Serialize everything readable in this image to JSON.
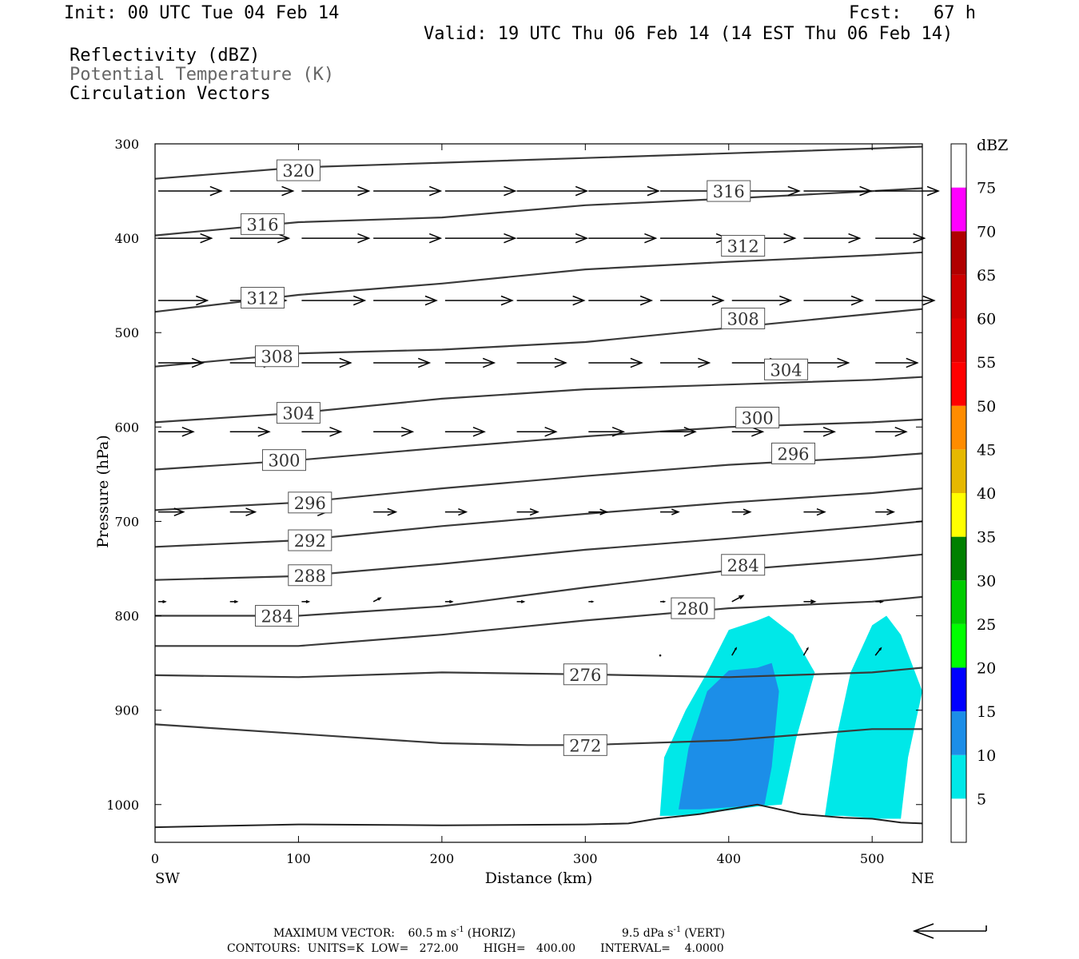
{
  "header": {
    "init": "Init: 00 UTC Tue 04 Feb 14",
    "fcst": "Fcst:   67 h",
    "valid": "Valid: 19 UTC Thu 06 Feb 14 (14 EST Thu 06 Feb 14)"
  },
  "fields": {
    "reflectivity": "Reflectivity (dBZ)",
    "theta": "Potential Temperature (K)",
    "vectors": "Circulation Vectors"
  },
  "footer": {
    "max_vector_label": "MAXIMUM VECTOR:",
    "max_horiz": "60.5 m s",
    "horiz_tag": "(HORIZ)",
    "max_vert": "9.5 dPa s",
    "vert_tag": "(VERT)",
    "exponent": "-1",
    "contours": "CONTOURS:  UNITS=K  LOW=   272.00       HIGH=   400.00       INTERVAL=    4.0000"
  },
  "colors": {
    "contour": "#3a3a3a",
    "scale": [
      {
        "value": 5,
        "color": "#00e8e8"
      },
      {
        "value": 10,
        "color": "#1c8ee8"
      },
      {
        "value": 15,
        "color": "#0000ff"
      },
      {
        "value": 20,
        "color": "#00ff00"
      },
      {
        "value": 25,
        "color": "#00cc00"
      },
      {
        "value": 30,
        "color": "#008000"
      },
      {
        "value": 35,
        "color": "#ffff00"
      },
      {
        "value": 40,
        "color": "#e6b800"
      },
      {
        "value": 45,
        "color": "#ff8c00"
      },
      {
        "value": 50,
        "color": "#ff0000"
      },
      {
        "value": 55,
        "color": "#e00000"
      },
      {
        "value": 60,
        "color": "#cc0000"
      },
      {
        "value": 65,
        "color": "#b00000"
      },
      {
        "value": 70,
        "color": "#ff00ff"
      },
      {
        "value": 75,
        "color": "#9955cc"
      }
    ]
  },
  "chart_data": {
    "type": "cross-section",
    "xlabel": "Distance (km)",
    "ylabel": "Pressure (hPa)",
    "xlim": [
      0,
      535
    ],
    "ylim": [
      1040,
      300
    ],
    "x_ticks": [
      0,
      100,
      200,
      300,
      400,
      500
    ],
    "y_ticks": [
      300,
      400,
      500,
      600,
      700,
      800,
      900,
      1000
    ],
    "x_ends": {
      "left": "SW",
      "right": "NE"
    },
    "colorbar_title": "dBZ",
    "colorbar_ticks": [
      5,
      10,
      15,
      20,
      25,
      30,
      35,
      40,
      45,
      50,
      55,
      60,
      65,
      70,
      75
    ],
    "theta_contours": [
      {
        "value": 272,
        "x": [
          0,
          100,
          200,
          260,
          300,
          400,
          500,
          535
        ],
        "p": [
          915,
          925,
          935,
          937,
          937,
          932,
          920,
          920
        ],
        "label_at": [
          300,
          937
        ]
      },
      {
        "value": 276,
        "x": [
          0,
          100,
          200,
          300,
          400,
          500,
          535
        ],
        "p": [
          863,
          865,
          860,
          862,
          865,
          860,
          855
        ],
        "label_at": [
          300,
          862
        ]
      },
      {
        "value": 280,
        "x": [
          0,
          100,
          200,
          300,
          400,
          500,
          535
        ],
        "p": [
          832,
          832,
          820,
          805,
          792,
          785,
          780
        ],
        "label_at": [
          375,
          792
        ]
      },
      {
        "value": 284,
        "x": [
          0,
          100,
          200,
          300,
          400,
          500,
          535
        ],
        "p": [
          800,
          800,
          790,
          770,
          752,
          740,
          735
        ],
        "label_at": [
          85,
          800
        ]
      },
      {
        "value": 288,
        "x": [
          0,
          100,
          200,
          300,
          400,
          500,
          535
        ],
        "p": [
          762,
          758,
          745,
          730,
          718,
          705,
          700
        ],
        "label_at": [
          108,
          757
        ]
      },
      {
        "value": 292,
        "x": [
          0,
          100,
          200,
          300,
          400,
          500,
          535
        ],
        "p": [
          727,
          720,
          705,
          692,
          680,
          670,
          665
        ],
        "label_at": [
          108,
          720
        ]
      },
      {
        "value": 296,
        "x": [
          0,
          100,
          200,
          300,
          400,
          500,
          535
        ],
        "p": [
          688,
          680,
          665,
          652,
          640,
          632,
          628
        ],
        "label_at": [
          108,
          680
        ]
      },
      {
        "value": 300,
        "x": [
          0,
          100,
          200,
          300,
          400,
          500,
          535
        ],
        "p": [
          645,
          635,
          622,
          610,
          600,
          595,
          592
        ],
        "label_at": [
          90,
          635
        ]
      },
      {
        "value": 304,
        "x": [
          0,
          100,
          200,
          300,
          400,
          500,
          535
        ],
        "p": [
          595,
          585,
          570,
          560,
          555,
          550,
          547
        ],
        "label_at": [
          100,
          585
        ]
      },
      {
        "value": 308,
        "x": [
          0,
          100,
          200,
          300,
          400,
          500,
          535
        ],
        "p": [
          536,
          522,
          518,
          510,
          495,
          480,
          475
        ],
        "label_at": [
          85,
          525
        ]
      },
      {
        "value": 312,
        "x": [
          0,
          100,
          200,
          300,
          400,
          500,
          535
        ],
        "p": [
          478,
          460,
          448,
          433,
          425,
          418,
          415
        ],
        "label_at": [
          75,
          463
        ]
      },
      {
        "value": 316,
        "x": [
          0,
          100,
          200,
          300,
          400,
          500,
          535
        ],
        "p": [
          397,
          383,
          378,
          365,
          358,
          350,
          347
        ],
        "label_at": [
          75,
          385
        ]
      },
      {
        "value": 320,
        "x": [
          0,
          100,
          200,
          300,
          400,
          500,
          535
        ],
        "p": [
          337,
          325,
          320,
          315,
          310,
          305,
          303
        ],
        "label_at": [
          100,
          328
        ]
      }
    ],
    "theta_extra_labels": [
      {
        "value": 316,
        "x": 400,
        "p": 350
      },
      {
        "value": 312,
        "x": 410,
        "p": 408
      },
      {
        "value": 308,
        "x": 410,
        "p": 485
      },
      {
        "value": 304,
        "x": 440,
        "p": 539
      },
      {
        "value": 300,
        "x": 420,
        "p": 590
      },
      {
        "value": 296,
        "x": 445,
        "p": 628
      },
      {
        "value": 284,
        "x": 410,
        "p": 746
      }
    ],
    "ground": {
      "x": [
        0,
        100,
        200,
        300,
        330,
        350,
        380,
        420,
        450,
        480,
        500,
        520,
        535
      ],
      "p": [
        1024,
        1021,
        1022,
        1021,
        1020,
        1015,
        1010,
        1000,
        1010,
        1014,
        1015,
        1019,
        1020
      ]
    },
    "reflectivity": [
      {
        "dbz": 5,
        "polygons": [
          {
            "x": [
              352,
              355,
              370,
              385,
              400,
              420,
              428,
              445,
              460,
              447,
              437,
              420,
              405,
              380,
              360,
              352
            ],
            "p": [
              1012,
              950,
              900,
              860,
              815,
              805,
              800,
              820,
              860,
              930,
              1000,
              1002,
              1005,
              1010,
              1012,
              1012
            ]
          },
          {
            "x": [
              467,
              475,
              485,
              500,
              510,
              520,
              530,
              535,
              525,
              520,
              505,
              480,
              467
            ],
            "p": [
              1012,
              930,
              860,
              810,
              800,
              820,
              860,
              880,
              950,
              1015,
              1015,
              1012,
              1012
            ]
          }
        ]
      },
      {
        "dbz": 10,
        "polygons": [
          {
            "x": [
              365,
              372,
              385,
              400,
              420,
              430,
              435,
              430,
              425,
              400,
              380,
              365
            ],
            "p": [
              1005,
              940,
              880,
              858,
              855,
              850,
              880,
              960,
              1000,
              1003,
              1005,
              1005
            ]
          }
        ]
      }
    ],
    "vectors": [
      {
        "x": 0,
        "p": 350,
        "u": 45,
        "w": 0
      },
      {
        "x": 50,
        "p": 350,
        "u": 45,
        "w": 0
      },
      {
        "x": 100,
        "p": 350,
        "u": 48,
        "w": 0
      },
      {
        "x": 150,
        "p": 350,
        "u": 48,
        "w": 0
      },
      {
        "x": 200,
        "p": 350,
        "u": 50,
        "w": 0
      },
      {
        "x": 250,
        "p": 350,
        "u": 50,
        "w": 0
      },
      {
        "x": 300,
        "p": 350,
        "u": 50,
        "w": 0
      },
      {
        "x": 350,
        "p": 350,
        "u": 50,
        "w": 0
      },
      {
        "x": 400,
        "p": 350,
        "u": 48,
        "w": 0
      },
      {
        "x": 450,
        "p": 350,
        "u": 48,
        "w": 0
      },
      {
        "x": 500,
        "p": 350,
        "u": 45,
        "w": 0
      },
      {
        "x": 0,
        "p": 400,
        "u": 38,
        "w": 0
      },
      {
        "x": 50,
        "p": 400,
        "u": 42,
        "w": 0
      },
      {
        "x": 100,
        "p": 400,
        "u": 48,
        "w": 0
      },
      {
        "x": 150,
        "p": 400,
        "u": 48,
        "w": 0
      },
      {
        "x": 200,
        "p": 400,
        "u": 50,
        "w": 0
      },
      {
        "x": 250,
        "p": 400,
        "u": 50,
        "w": 0
      },
      {
        "x": 300,
        "p": 400,
        "u": 48,
        "w": 0
      },
      {
        "x": 350,
        "p": 400,
        "u": 48,
        "w": 0
      },
      {
        "x": 400,
        "p": 400,
        "u": 45,
        "w": 0
      },
      {
        "x": 450,
        "p": 400,
        "u": 40,
        "w": 0
      },
      {
        "x": 500,
        "p": 400,
        "u": 35,
        "w": 0
      },
      {
        "x": 0,
        "p": 466,
        "u": 35,
        "w": 0
      },
      {
        "x": 50,
        "p": 466,
        "u": 40,
        "w": 0
      },
      {
        "x": 100,
        "p": 466,
        "u": 45,
        "w": 0
      },
      {
        "x": 150,
        "p": 466,
        "u": 45,
        "w": 0
      },
      {
        "x": 200,
        "p": 466,
        "u": 48,
        "w": 0
      },
      {
        "x": 250,
        "p": 466,
        "u": 48,
        "w": 0
      },
      {
        "x": 300,
        "p": 466,
        "u": 45,
        "w": 0
      },
      {
        "x": 350,
        "p": 466,
        "u": 45,
        "w": 0
      },
      {
        "x": 400,
        "p": 466,
        "u": 42,
        "w": 0
      },
      {
        "x": 450,
        "p": 466,
        "u": 42,
        "w": 0
      },
      {
        "x": 500,
        "p": 466,
        "u": 42,
        "w": 0
      },
      {
        "x": 0,
        "p": 532,
        "u": 32,
        "w": 0
      },
      {
        "x": 50,
        "p": 532,
        "u": 32,
        "w": 0
      },
      {
        "x": 100,
        "p": 532,
        "u": 35,
        "w": 0
      },
      {
        "x": 150,
        "p": 532,
        "u": 40,
        "w": 0
      },
      {
        "x": 200,
        "p": 532,
        "u": 35,
        "w": 0
      },
      {
        "x": 250,
        "p": 532,
        "u": 35,
        "w": 0
      },
      {
        "x": 300,
        "p": 532,
        "u": 38,
        "w": 0
      },
      {
        "x": 350,
        "p": 532,
        "u": 35,
        "w": 0
      },
      {
        "x": 400,
        "p": 532,
        "u": 35,
        "w": 0
      },
      {
        "x": 450,
        "p": 532,
        "u": 32,
        "w": 0
      },
      {
        "x": 500,
        "p": 532,
        "u": 30,
        "w": 0
      },
      {
        "x": 0,
        "p": 605,
        "u": 25,
        "w": 0
      },
      {
        "x": 50,
        "p": 605,
        "u": 28,
        "w": 0
      },
      {
        "x": 100,
        "p": 605,
        "u": 28,
        "w": 0
      },
      {
        "x": 150,
        "p": 605,
        "u": 28,
        "w": 0
      },
      {
        "x": 200,
        "p": 605,
        "u": 28,
        "w": 0
      },
      {
        "x": 250,
        "p": 605,
        "u": 28,
        "w": 0
      },
      {
        "x": 300,
        "p": 605,
        "u": 25,
        "w": 0
      },
      {
        "x": 350,
        "p": 605,
        "u": 25,
        "w": 0
      },
      {
        "x": 400,
        "p": 605,
        "u": 22,
        "w": 0
      },
      {
        "x": 450,
        "p": 605,
        "u": 22,
        "w": 0
      },
      {
        "x": 500,
        "p": 605,
        "u": 22,
        "w": 0
      },
      {
        "x": 0,
        "p": 690,
        "u": 18,
        "w": 0
      },
      {
        "x": 50,
        "p": 690,
        "u": 18,
        "w": 0
      },
      {
        "x": 100,
        "p": 690,
        "u": 18,
        "w": 0
      },
      {
        "x": 150,
        "p": 690,
        "u": 16,
        "w": 0
      },
      {
        "x": 200,
        "p": 690,
        "u": 15,
        "w": 0
      },
      {
        "x": 250,
        "p": 690,
        "u": 15,
        "w": 0
      },
      {
        "x": 300,
        "p": 690,
        "u": 13,
        "w": 0
      },
      {
        "x": 350,
        "p": 690,
        "u": 13,
        "w": 0
      },
      {
        "x": 400,
        "p": 690,
        "u": 13,
        "w": 0
      },
      {
        "x": 450,
        "p": 690,
        "u": 15,
        "w": 0
      },
      {
        "x": 500,
        "p": 690,
        "u": 13,
        "w": 0
      },
      {
        "x": 0,
        "p": 785,
        "u": 5,
        "w": 0
      },
      {
        "x": 50,
        "p": 785,
        "u": 5,
        "w": 0
      },
      {
        "x": 100,
        "p": 785,
        "u": 5,
        "w": 0
      },
      {
        "x": 150,
        "p": 785,
        "u": 5,
        "w": 3
      },
      {
        "x": 200,
        "p": 785,
        "u": 5,
        "w": 0
      },
      {
        "x": 250,
        "p": 785,
        "u": 5,
        "w": 0
      },
      {
        "x": 300,
        "p": 785,
        "u": 3,
        "w": 0
      },
      {
        "x": 350,
        "p": 785,
        "u": 3,
        "w": 0
      },
      {
        "x": 400,
        "p": 785,
        "u": 8,
        "w": 5
      },
      {
        "x": 450,
        "p": 785,
        "u": 8,
        "w": 0
      },
      {
        "x": 500,
        "p": 785,
        "u": 5,
        "w": 0
      },
      {
        "x": 400,
        "p": 842,
        "u": 3,
        "w": 6
      },
      {
        "x": 450,
        "p": 842,
        "u": 3,
        "w": 6
      },
      {
        "x": 500,
        "p": 842,
        "u": 4,
        "w": 6
      },
      {
        "x": 350,
        "p": 842,
        "u": 1,
        "w": 4
      }
    ]
  }
}
